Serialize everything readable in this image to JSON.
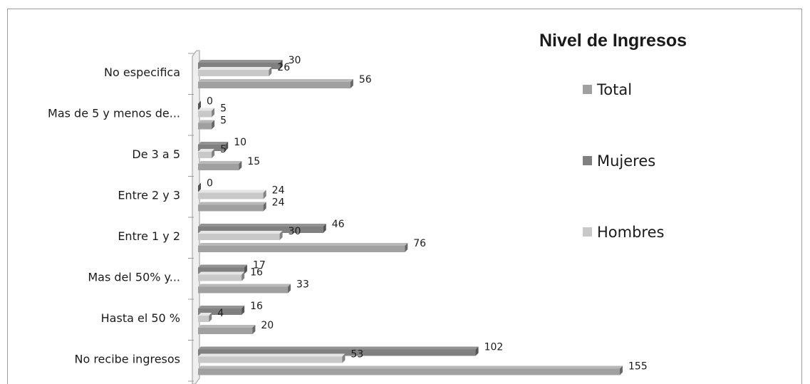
{
  "chart_data": {
    "type": "bar",
    "orientation": "horizontal",
    "title": "Nivel de Ingresos",
    "categories": [
      "No especifica",
      "Mas de 5 y menos de...",
      "De 3 a 5",
      "Entre 2 y 3",
      "Entre 1 y 2",
      "Mas del 50% y...",
      "Hasta el 50 %",
      "No recibe ingresos"
    ],
    "series": [
      {
        "name": "Mujeres",
        "color": "#808080",
        "values": [
          30,
          0,
          10,
          0,
          46,
          17,
          16,
          102
        ]
      },
      {
        "name": "Hombres",
        "color": "#c8c8c8",
        "values": [
          26,
          5,
          5,
          24,
          30,
          16,
          4,
          53
        ]
      },
      {
        "name": "Total",
        "color": "#a0a0a0",
        "values": [
          56,
          5,
          15,
          24,
          76,
          33,
          20,
          155
        ]
      }
    ],
    "legend_order": [
      "Total",
      "Mujeres",
      "Hombres"
    ],
    "legend_position": "right",
    "xlim": [
      0,
      155
    ],
    "grid": false,
    "style": "3d"
  }
}
